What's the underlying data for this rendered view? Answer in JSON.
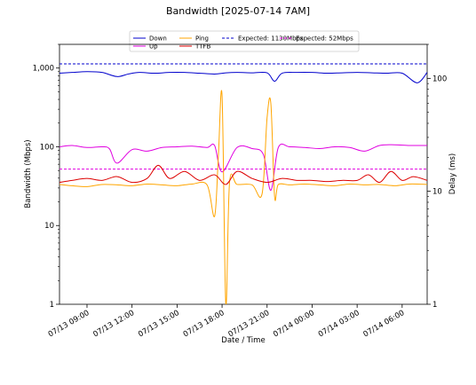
{
  "chart_data": {
    "type": "line",
    "title": "Bandwidth [2025-07-14 7AM]",
    "xlabel": "Date / Time",
    "ylabel": "Bandwidth (Mbps)",
    "y2label": "Delay (ms)",
    "x_range": [
      "2025-07-13T07:10",
      "2025-07-14T07:40"
    ],
    "ylim": [
      1,
      2000
    ],
    "y_scale": "log",
    "y2lim": [
      1,
      200
    ],
    "y2_scale": "log",
    "x_ticks": [
      "07/13 09:00",
      "07/13 12:00",
      "07/13 15:00",
      "07/13 18:00",
      "07/13 21:00",
      "07/14 00:00",
      "07/14 03:00",
      "07/14 06:00"
    ],
    "y_ticks": [
      "1",
      "10",
      "100",
      "1,000"
    ],
    "y2_ticks": [
      "1",
      "10",
      "100"
    ],
    "legend_placement": "top-center",
    "legend": [
      {
        "label": "Down",
        "color": "#0000cc",
        "style": "solid"
      },
      {
        "label": "Up",
        "color": "#e000e0",
        "style": "solid"
      },
      {
        "label": "Ping",
        "color": "#ffa500",
        "style": "solid"
      },
      {
        "label": "TTFB",
        "color": "#dd0000",
        "style": "solid"
      },
      {
        "label": "Expected: 1130Mbps",
        "color": "#0000cc",
        "style": "dashed"
      },
      {
        "label": "Expected: 52Mbps",
        "color": "#e000e0",
        "style": "dashed"
      }
    ],
    "reference_lines": [
      {
        "axis": "left",
        "value": 1130,
        "color": "#0000cc"
      },
      {
        "axis": "left",
        "value": 52,
        "color": "#e000e0"
      }
    ],
    "series": [
      {
        "name": "Down",
        "axis": "left",
        "color": "#0000cc",
        "x": [
          "2025-07-13T07:10",
          "2025-07-13T08:00",
          "2025-07-13T09:00",
          "2025-07-13T10:00",
          "2025-07-13T11:00",
          "2025-07-13T11:45",
          "2025-07-13T12:30",
          "2025-07-13T13:30",
          "2025-07-13T14:30",
          "2025-07-13T15:30",
          "2025-07-13T16:30",
          "2025-07-13T17:30",
          "2025-07-13T18:15",
          "2025-07-13T19:00",
          "2025-07-13T20:00",
          "2025-07-13T21:00",
          "2025-07-13T21:30",
          "2025-07-13T22:00",
          "2025-07-13T23:00",
          "2025-07-14T00:00",
          "2025-07-14T01:00",
          "2025-07-14T02:00",
          "2025-07-14T03:00",
          "2025-07-14T04:00",
          "2025-07-14T05:00",
          "2025-07-14T06:00",
          "2025-07-14T07:00",
          "2025-07-14T07:40"
        ],
        "values": [
          860,
          880,
          900,
          880,
          780,
          840,
          880,
          860,
          880,
          880,
          860,
          840,
          870,
          880,
          870,
          870,
          680,
          860,
          880,
          880,
          860,
          870,
          880,
          870,
          860,
          860,
          650,
          880
        ]
      },
      {
        "name": "Up",
        "axis": "left",
        "color": "#e000e0",
        "x": [
          "2025-07-13T07:10",
          "2025-07-13T08:00",
          "2025-07-13T09:00",
          "2025-07-13T10:00",
          "2025-07-13T10:30",
          "2025-07-13T11:00",
          "2025-07-13T12:00",
          "2025-07-13T13:00",
          "2025-07-13T14:00",
          "2025-07-13T15:00",
          "2025-07-13T16:00",
          "2025-07-13T17:00",
          "2025-07-13T17:30",
          "2025-07-13T18:00",
          "2025-07-13T19:00",
          "2025-07-13T20:00",
          "2025-07-13T20:45",
          "2025-07-13T21:15",
          "2025-07-13T21:45",
          "2025-07-13T22:30",
          "2025-07-13T23:30",
          "2025-07-14T00:30",
          "2025-07-14T01:30",
          "2025-07-14T02:30",
          "2025-07-14T03:30",
          "2025-07-14T04:30",
          "2025-07-14T05:30",
          "2025-07-14T06:30",
          "2025-07-14T07:40"
        ],
        "values": [
          100,
          104,
          98,
          100,
          94,
          62,
          92,
          88,
          98,
          100,
          102,
          98,
          104,
          48,
          98,
          95,
          80,
          28,
          98,
          100,
          98,
          95,
          100,
          98,
          88,
          104,
          106,
          104,
          104
        ]
      },
      {
        "name": "Ping",
        "axis": "right",
        "color": "#ffa500",
        "x": [
          "2025-07-13T07:10",
          "2025-07-13T08:00",
          "2025-07-13T09:00",
          "2025-07-13T10:00",
          "2025-07-13T11:00",
          "2025-07-13T12:00",
          "2025-07-13T13:00",
          "2025-07-13T14:00",
          "2025-07-13T15:00",
          "2025-07-13T16:00",
          "2025-07-13T17:00",
          "2025-07-13T17:30",
          "2025-07-13T17:45",
          "2025-07-13T18:00",
          "2025-07-13T18:15",
          "2025-07-13T18:30",
          "2025-07-13T19:00",
          "2025-07-13T20:00",
          "2025-07-13T20:40",
          "2025-07-13T21:00",
          "2025-07-13T21:15",
          "2025-07-13T21:30",
          "2025-07-13T21:45",
          "2025-07-13T22:30",
          "2025-07-13T23:30",
          "2025-07-14T00:30",
          "2025-07-14T01:30",
          "2025-07-14T02:30",
          "2025-07-14T03:30",
          "2025-07-14T04:30",
          "2025-07-14T05:30",
          "2025-07-14T06:30",
          "2025-07-14T07:40"
        ],
        "values": [
          11.5,
          11.2,
          11,
          11.5,
          11.4,
          11.2,
          11.6,
          11.4,
          11.2,
          11.6,
          11.4,
          6,
          20,
          70,
          1,
          12,
          11.5,
          11.4,
          9.5,
          45,
          60,
          9,
          11.5,
          11.4,
          11.6,
          11.4,
          11.2,
          11.6,
          11.4,
          11.5,
          11.2,
          11.6,
          11.5
        ]
      },
      {
        "name": "TTFB",
        "axis": "right",
        "color": "#dd0000",
        "x": [
          "2025-07-13T07:10",
          "2025-07-13T08:00",
          "2025-07-13T09:00",
          "2025-07-13T10:00",
          "2025-07-13T11:00",
          "2025-07-13T12:00",
          "2025-07-13T13:00",
          "2025-07-13T13:45",
          "2025-07-13T14:30",
          "2025-07-13T15:30",
          "2025-07-13T16:30",
          "2025-07-13T17:30",
          "2025-07-13T18:15",
          "2025-07-13T19:00",
          "2025-07-13T20:00",
          "2025-07-13T21:00",
          "2025-07-13T22:00",
          "2025-07-13T23:00",
          "2025-07-14T00:00",
          "2025-07-14T01:00",
          "2025-07-14T02:00",
          "2025-07-14T03:00",
          "2025-07-14T03:45",
          "2025-07-14T04:30",
          "2025-07-14T05:15",
          "2025-07-14T06:00",
          "2025-07-14T06:45",
          "2025-07-14T07:40"
        ],
        "values": [
          12,
          12.5,
          13,
          12.5,
          13.5,
          12,
          13,
          17,
          13,
          15,
          12.5,
          14,
          11.5,
          15,
          13,
          12,
          13,
          12.5,
          12.5,
          12.2,
          12.5,
          12.5,
          14,
          12,
          15,
          12.5,
          13.5,
          12.5
        ]
      }
    ]
  }
}
